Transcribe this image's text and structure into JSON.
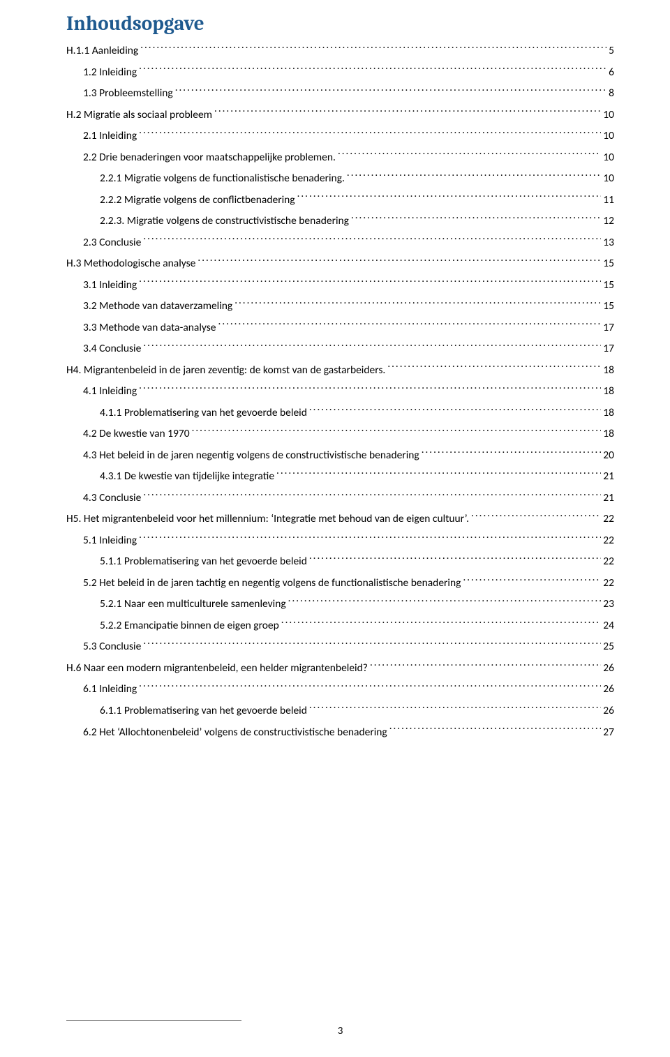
{
  "colors": {
    "title": "#1f5a8f",
    "text": "#000000",
    "background": "#ffffff",
    "footer_rule": "#7f7f7f"
  },
  "typography": {
    "title_family": "Cambria",
    "body_family": "Calibri",
    "title_size_pt": 22,
    "body_size_pt": 11.5
  },
  "title": "Inhoudsopgave",
  "page_number": "3",
  "toc": [
    {
      "indent": 0,
      "label": "H.1.1 Aanleiding",
      "page": "5"
    },
    {
      "indent": 1,
      "label": "1.2 Inleiding",
      "page": "6"
    },
    {
      "indent": 1,
      "label": "1.3 Probleemstelling",
      "page": "8"
    },
    {
      "indent": 0,
      "label": "H.2 Migratie als sociaal probleem",
      "page": "10"
    },
    {
      "indent": 1,
      "label": "2.1 Inleiding",
      "page": "10"
    },
    {
      "indent": 1,
      "label": "2.2 Drie benaderingen voor maatschappelijke problemen.",
      "page": "10"
    },
    {
      "indent": 2,
      "label": "2.2.1 Migratie volgens de functionalistische benadering.",
      "page": "10"
    },
    {
      "indent": 2,
      "label": "2.2.2 Migratie volgens de conflictbenadering",
      "page": "11"
    },
    {
      "indent": 2,
      "label": "2.2.3. Migratie volgens de constructivistische benadering",
      "page": "12"
    },
    {
      "indent": 1,
      "label": "2.3 Conclusie",
      "page": "13"
    },
    {
      "indent": 0,
      "label": "H.3 Methodologische analyse",
      "page": "15"
    },
    {
      "indent": 1,
      "label": "3.1 Inleiding",
      "page": "15"
    },
    {
      "indent": 1,
      "label": "3.2 Methode van dataverzameling",
      "page": "15"
    },
    {
      "indent": 1,
      "label": "3.3 Methode van data-analyse",
      "page": "17"
    },
    {
      "indent": 1,
      "label": "3.4 Conclusie",
      "page": "17"
    },
    {
      "indent": 0,
      "label": "H4. Migrantenbeleid in de jaren zeventig: de komst van de gastarbeiders.",
      "page": "18"
    },
    {
      "indent": 1,
      "label": "4.1 Inleiding",
      "page": "18"
    },
    {
      "indent": 2,
      "label": "4.1.1 Problematisering van het gevoerde beleid",
      "page": "18"
    },
    {
      "indent": 1,
      "label": "4.2 De kwestie van 1970",
      "page": "18"
    },
    {
      "indent": 1,
      "label": "4.3 Het beleid in de jaren negentig volgens de constructivistische benadering",
      "page": "20"
    },
    {
      "indent": 2,
      "label": "4.3.1 De kwestie van tijdelijke integratie",
      "page": "21"
    },
    {
      "indent": 1,
      "label": "4.3 Conclusie",
      "page": "21"
    },
    {
      "indent": 0,
      "label": "H5. Het migrantenbeleid voor het millennium: ‘Integratie met behoud van de eigen cultuur’.",
      "page": "22"
    },
    {
      "indent": 1,
      "label": "5.1 Inleiding",
      "page": "22"
    },
    {
      "indent": 2,
      "label": "5.1.1 Problematisering van het gevoerde beleid",
      "page": "22"
    },
    {
      "indent": 1,
      "label": "5.2 Het beleid in de jaren tachtig en negentig volgens de functionalistische benadering",
      "page": "22"
    },
    {
      "indent": 2,
      "label": "5.2.1 Naar een multiculturele samenleving",
      "page": "23"
    },
    {
      "indent": 2,
      "label": "5.2.2 Emancipatie binnen de eigen groep",
      "page": "24"
    },
    {
      "indent": 1,
      "label": "5.3 Conclusie",
      "page": "25"
    },
    {
      "indent": 0,
      "label": "H.6 Naar een modern migrantenbeleid, een helder migrantenbeleid?",
      "page": "26"
    },
    {
      "indent": 1,
      "label": "6.1 Inleiding",
      "page": "26"
    },
    {
      "indent": 2,
      "label": "6.1.1 Problematisering van het gevoerde beleid",
      "page": "26"
    },
    {
      "indent": 1,
      "label": "6.2 Het ‘Allochtonenbeleid’ volgens de constructivistische benadering",
      "page": "27"
    }
  ]
}
